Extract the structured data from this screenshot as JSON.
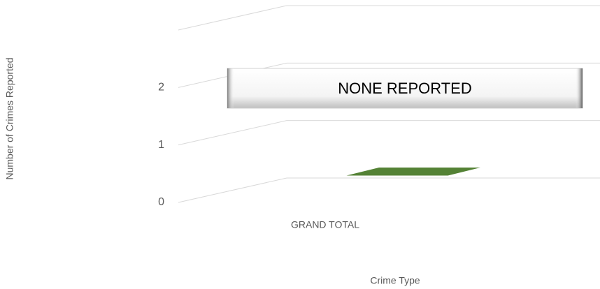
{
  "chart_data": {
    "type": "bar3d",
    "y_label": "Number of Crimes Reported",
    "x_label": "Crime Type",
    "categories": [
      "GRAND TOTAL"
    ],
    "values": [
      0
    ],
    "color": "#548235",
    "ylim": [
      0,
      3
    ],
    "yticks": [
      0,
      1,
      2
    ],
    "grid": true,
    "annotation": "NONE REPORTED"
  }
}
